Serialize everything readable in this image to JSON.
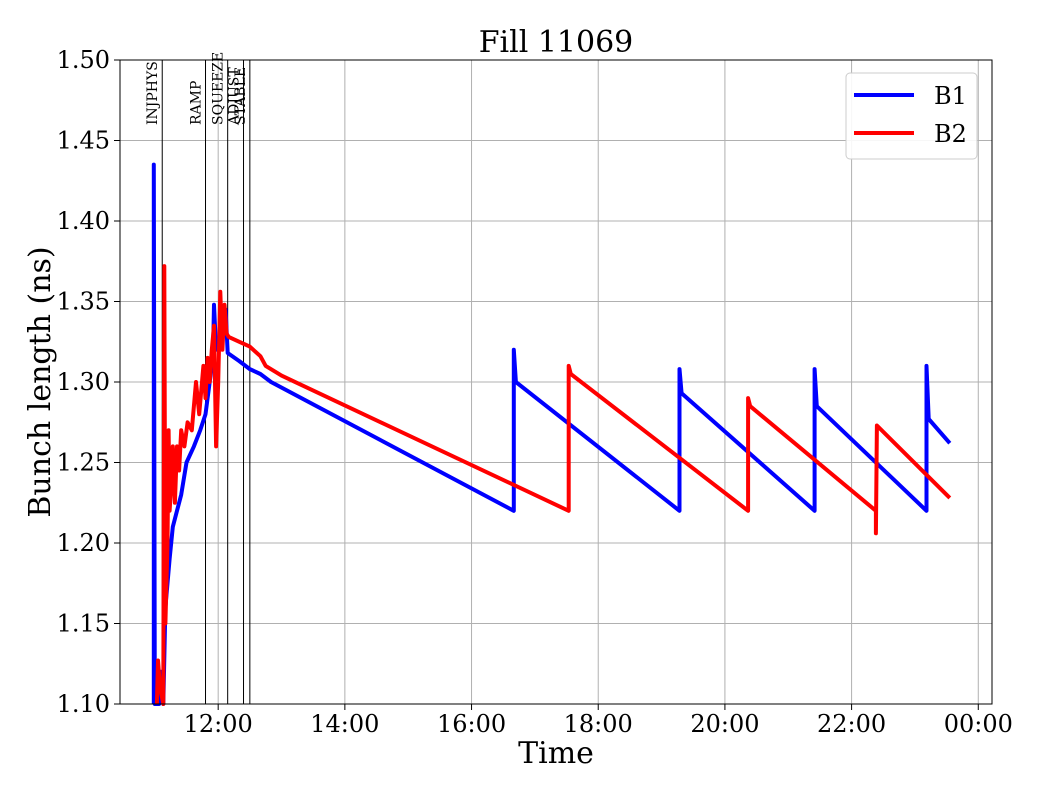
{
  "chart_data": {
    "type": "line",
    "title": "Fill 11069",
    "xlabel": "Time",
    "ylabel": "Bunch length (ns)",
    "x_unit": "time of day (HH:MM)",
    "xlim": [
      "10:27",
      "00:13"
    ],
    "ylim": [
      1.1,
      1.5
    ],
    "x_ticks": [
      "12:00",
      "14:00",
      "16:00",
      "18:00",
      "20:00",
      "22:00",
      "00:00"
    ],
    "y_ticks": [
      "1.10",
      "1.15",
      "1.20",
      "1.25",
      "1.30",
      "1.35",
      "1.40",
      "1.45",
      "1.50"
    ],
    "grid": true,
    "legend_position": "top-right",
    "phases": [
      {
        "label": "INJPHYS",
        "time": "11:07"
      },
      {
        "label": "RAMP",
        "time": "11:48"
      },
      {
        "label": "SQUEEZE",
        "time": "12:09"
      },
      {
        "label": "ADJUST",
        "time": "12:24"
      },
      {
        "label": "STABLE",
        "time": "12:30"
      }
    ],
    "series": [
      {
        "name": "B1",
        "color": "#0000ff",
        "points": [
          [
            "10:59",
            1.1
          ],
          [
            "10:59",
            1.435
          ],
          [
            "11:00",
            1.1
          ],
          [
            "11:04",
            1.1
          ],
          [
            "11:06",
            1.12
          ],
          [
            "11:08",
            1.1
          ],
          [
            "11:10",
            1.16
          ],
          [
            "11:14",
            1.19
          ],
          [
            "11:17",
            1.21
          ],
          [
            "11:21",
            1.22
          ],
          [
            "11:25",
            1.23
          ],
          [
            "11:30",
            1.25
          ],
          [
            "11:37",
            1.26
          ],
          [
            "11:43",
            1.27
          ],
          [
            "11:48",
            1.28
          ],
          [
            "11:52",
            1.3
          ],
          [
            "11:55",
            1.315
          ],
          [
            "11:56",
            1.348
          ],
          [
            "11:58",
            1.32
          ],
          [
            "12:02",
            1.33
          ],
          [
            "12:05",
            1.34
          ],
          [
            "12:07",
            1.345
          ],
          [
            "12:09",
            1.318
          ],
          [
            "12:20",
            1.313
          ],
          [
            "12:30",
            1.308
          ],
          [
            "12:40",
            1.305
          ],
          [
            "12:50",
            1.3
          ],
          [
            "16:40",
            1.22
          ],
          [
            "16:40",
            1.32
          ],
          [
            "16:42",
            1.3
          ],
          [
            "19:17",
            1.22
          ],
          [
            "19:17",
            1.308
          ],
          [
            "19:19",
            1.293
          ],
          [
            "21:25",
            1.22
          ],
          [
            "21:25",
            1.308
          ],
          [
            "21:27",
            1.285
          ],
          [
            "23:11",
            1.22
          ],
          [
            "23:11",
            1.31
          ],
          [
            "23:13",
            1.277
          ],
          [
            "23:33",
            1.262
          ]
        ]
      },
      {
        "name": "B2",
        "color": "#ff0000",
        "points": [
          [
            "11:02",
            1.1
          ],
          [
            "11:03",
            1.127
          ],
          [
            "11:05",
            1.11
          ],
          [
            "11:08",
            1.1
          ],
          [
            "11:09",
            1.372
          ],
          [
            "11:10",
            1.15
          ],
          [
            "11:12",
            1.2
          ],
          [
            "11:13",
            1.27
          ],
          [
            "11:14",
            1.22
          ],
          [
            "11:16",
            1.24
          ],
          [
            "11:17",
            1.26
          ],
          [
            "11:19",
            1.225
          ],
          [
            "11:21",
            1.26
          ],
          [
            "11:23",
            1.245
          ],
          [
            "11:25",
            1.27
          ],
          [
            "11:28",
            1.26
          ],
          [
            "11:31",
            1.275
          ],
          [
            "11:35",
            1.27
          ],
          [
            "11:39",
            1.3
          ],
          [
            "11:42",
            1.28
          ],
          [
            "11:46",
            1.31
          ],
          [
            "11:48",
            1.29
          ],
          [
            "11:50",
            1.315
          ],
          [
            "11:52",
            1.3
          ],
          [
            "11:54",
            1.32
          ],
          [
            "11:56",
            1.335
          ],
          [
            "11:58",
            1.26
          ],
          [
            "12:00",
            1.3
          ],
          [
            "12:02",
            1.356
          ],
          [
            "12:04",
            1.32
          ],
          [
            "12:06",
            1.348
          ],
          [
            "12:08",
            1.33
          ],
          [
            "12:10",
            1.328
          ],
          [
            "12:20",
            1.325
          ],
          [
            "12:30",
            1.322
          ],
          [
            "12:40",
            1.316
          ],
          [
            "12:45",
            1.31
          ],
          [
            "12:55",
            1.306
          ],
          [
            "13:00",
            1.304
          ],
          [
            "17:32",
            1.22
          ],
          [
            "17:32",
            1.31
          ],
          [
            "17:34",
            1.305
          ],
          [
            "20:22",
            1.22
          ],
          [
            "20:22",
            1.29
          ],
          [
            "20:24",
            1.285
          ],
          [
            "22:23",
            1.22
          ],
          [
            "22:23",
            1.206
          ],
          [
            "22:24",
            1.273
          ],
          [
            "23:33",
            1.228
          ]
        ]
      }
    ]
  }
}
